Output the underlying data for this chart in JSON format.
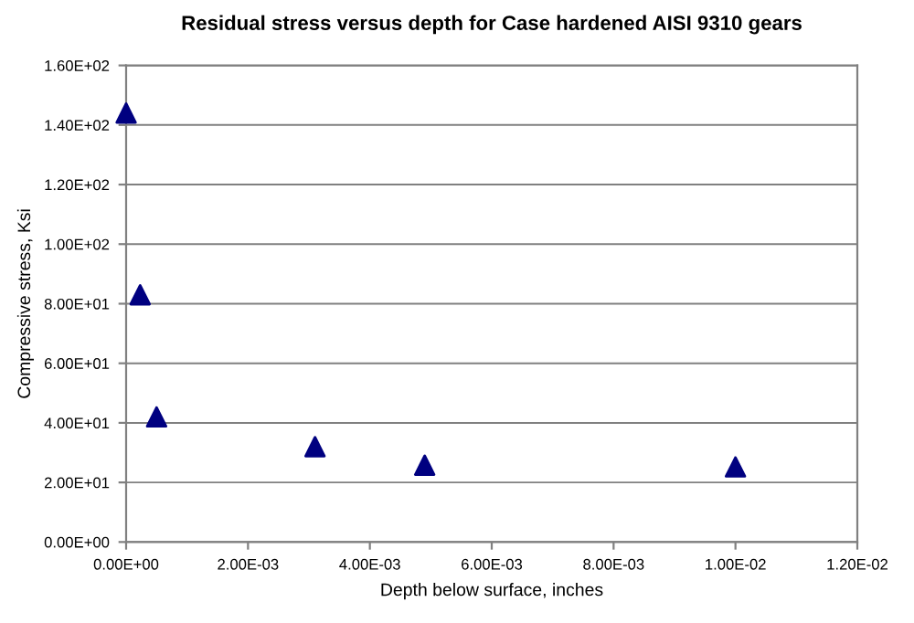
{
  "chart_data": {
    "type": "scatter",
    "title": "Residual stress versus depth for Case hardened AISI 9310 gears",
    "xlabel": "Depth below surface, inches",
    "ylabel": "Compressive stress, Ksi",
    "x": [
      0,
      0.00023,
      0.0005,
      0.0031,
      0.0049,
      0.01
    ],
    "values": [
      144,
      83,
      42,
      32,
      25.8,
      25.2
    ],
    "color": "#000080",
    "marker": "triangle",
    "grid": "y",
    "xlim": [
      0,
      0.012
    ],
    "xticks": [
      {
        "value": 0,
        "label": "0.00E+00"
      },
      {
        "value": 0.002,
        "label": "2.00E-03"
      },
      {
        "value": 0.004,
        "label": "4.00E-03"
      },
      {
        "value": 0.006,
        "label": "6.00E-03"
      },
      {
        "value": 0.008,
        "label": "8.00E-03"
      },
      {
        "value": 0.01,
        "label": "1.00E-02"
      },
      {
        "value": 0.012,
        "label": "1.20E-02"
      }
    ],
    "ylim": [
      0,
      160
    ],
    "yticks": [
      {
        "value": 0,
        "label": "0.00E+00"
      },
      {
        "value": 20,
        "label": "2.00E+01"
      },
      {
        "value": 40,
        "label": "4.00E+01"
      },
      {
        "value": 60,
        "label": "6.00E+01"
      },
      {
        "value": 80,
        "label": "8.00E+01"
      },
      {
        "value": 100,
        "label": "1.00E+02"
      },
      {
        "value": 120,
        "label": "1.20E+02"
      },
      {
        "value": 140,
        "label": "1.40E+02"
      },
      {
        "value": 160,
        "label": "1.60E+02"
      }
    ]
  }
}
